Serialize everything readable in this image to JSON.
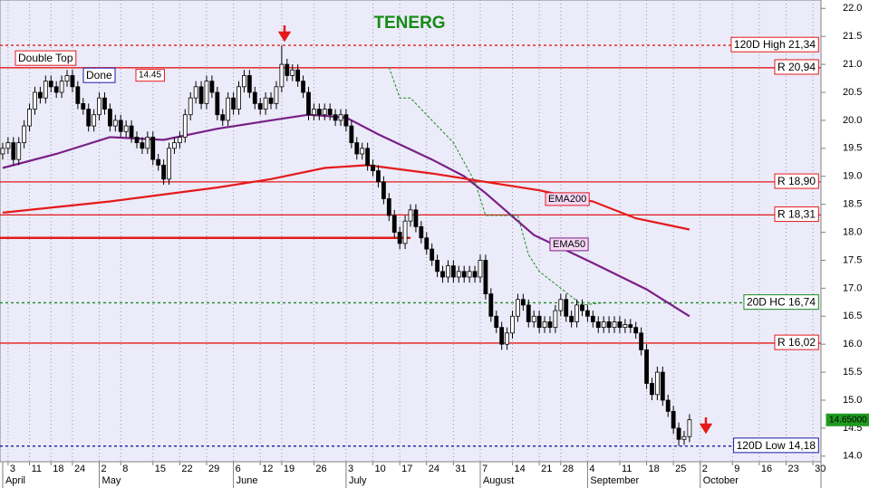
{
  "chart_data": {
    "type": "candlestick",
    "title": "TENERG",
    "xlim": [
      -0.5,
      152.5
    ],
    "ylim": [
      13.9,
      22.15
    ],
    "yticks": [
      {
        "value": 14,
        "label": "14.0"
      },
      14.5,
      {
        "value": 15,
        "label": "15.0"
      },
      15.5,
      {
        "value": 16,
        "label": "16.0"
      },
      16.5,
      {
        "value": 17,
        "label": "17.0"
      },
      17.5,
      {
        "value": 18,
        "label": "18.0"
      },
      18.5,
      {
        "value": 19,
        "label": "19.0"
      },
      19.5,
      {
        "value": 20,
        "label": "20.0"
      },
      20.5,
      {
        "value": 21,
        "label": "21.0"
      },
      21.5,
      {
        "value": 22,
        "label": "22.0"
      }
    ],
    "xticks": [
      {
        "value": 1,
        "label": "3"
      },
      {
        "value": 5,
        "label": "11"
      },
      {
        "value": 9,
        "label": "18"
      },
      {
        "value": 13,
        "label": "24"
      },
      {
        "value": 18,
        "label": "2"
      },
      {
        "value": 22,
        "label": "8"
      },
      {
        "value": 28,
        "label": "15"
      },
      {
        "value": 33,
        "label": "22"
      },
      {
        "value": 38,
        "label": "29"
      },
      {
        "value": 43,
        "label": "6"
      },
      {
        "value": 48,
        "label": "12"
      },
      {
        "value": 52,
        "label": "19"
      },
      {
        "value": 58,
        "label": "26"
      },
      {
        "value": 64,
        "label": "3"
      },
      {
        "value": 69,
        "label": "10"
      },
      {
        "value": 74,
        "label": "17"
      },
      {
        "value": 79,
        "label": "24"
      },
      {
        "value": 84,
        "label": "31"
      },
      {
        "value": 89,
        "label": "7"
      },
      {
        "value": 95,
        "label": "14"
      },
      {
        "value": 100,
        "label": "21"
      },
      {
        "value": 104,
        "label": "28"
      },
      {
        "value": 109,
        "label": "4"
      },
      {
        "value": 115,
        "label": "11"
      },
      {
        "value": 120,
        "label": "18"
      },
      {
        "value": 125,
        "label": "25"
      },
      {
        "value": 130,
        "label": "2"
      },
      {
        "value": 136,
        "label": "9"
      },
      {
        "value": 141,
        "label": "16"
      },
      {
        "value": 146,
        "label": "23"
      },
      {
        "value": 151,
        "label": "30"
      }
    ],
    "months": [
      {
        "value": 0,
        "label": "April"
      },
      {
        "value": 18,
        "label": "May"
      },
      {
        "value": 43,
        "label": "June"
      },
      {
        "value": 64,
        "label": "July"
      },
      {
        "value": 89,
        "label": "August"
      },
      {
        "value": 109,
        "label": "September"
      },
      {
        "value": 130,
        "label": "October"
      }
    ],
    "up_color": "#ffffff",
    "down_color": "#000000",
    "open": [
      19.4,
      19.5,
      19.6,
      19.3,
      19.6,
      19.9,
      20.2,
      20.5,
      20.4,
      20.7,
      20.6,
      20.5,
      20.7,
      20.8,
      20.6,
      20.3,
      20.2,
      19.9,
      20.1,
      20.4,
      20.2,
      19.9,
      20.0,
      19.8,
      19.9,
      19.7,
      19.6,
      19.5,
      19.7,
      19.3,
      19.2,
      18.95,
      19.5,
      19.6,
      19.7,
      20.1,
      20.4,
      20.6,
      20.3,
      20.7,
      20.5,
      20.1,
      20.0,
      20.4,
      20.2,
      20.6,
      20.8,
      20.5,
      20.3,
      20.2,
      20.4,
      20.3,
      20.6,
      21.0,
      20.8,
      20.9,
      20.7,
      20.5,
      20.1,
      20.2,
      20.1,
      20.2,
      20.1,
      20.0,
      20.1,
      19.9,
      19.6,
      19.4,
      19.5,
      19.2,
      19.1,
      18.9,
      18.6,
      18.3,
      18.0,
      17.8,
      18.2,
      18.4,
      18.1,
      17.9,
      17.7,
      17.5,
      17.3,
      17.2,
      17.4,
      17.2,
      17.3,
      17.2,
      17.3,
      17.2,
      17.5,
      16.9,
      16.5,
      16.3,
      16.0,
      16.2,
      16.5,
      16.8,
      16.7,
      16.4,
      16.5,
      16.3,
      16.4,
      16.3,
      16.6,
      16.8,
      16.5,
      16.4,
      16.7,
      16.6,
      16.5,
      16.4,
      16.3,
      16.4,
      16.3,
      16.4,
      16.3,
      16.35,
      16.3,
      16.2,
      15.9,
      15.3,
      15.1,
      15.5,
      15.0,
      14.8,
      14.5,
      14.3,
      14.35
    ],
    "high": [
      19.6,
      19.7,
      19.7,
      19.7,
      20.0,
      20.3,
      20.6,
      20.6,
      20.8,
      20.8,
      20.7,
      20.8,
      20.9,
      20.9,
      20.7,
      20.4,
      20.3,
      20.2,
      20.5,
      20.5,
      20.3,
      20.1,
      20.1,
      20.0,
      20.0,
      19.8,
      19.7,
      19.8,
      19.8,
      19.4,
      19.3,
      19.6,
      19.7,
      19.8,
      20.2,
      20.5,
      20.7,
      20.7,
      20.8,
      20.8,
      20.6,
      20.2,
      20.5,
      20.5,
      20.7,
      20.9,
      20.9,
      20.6,
      20.4,
      20.5,
      20.5,
      20.7,
      21.34,
      21.1,
      21.0,
      21.0,
      20.8,
      20.6,
      20.3,
      20.3,
      20.3,
      20.3,
      20.2,
      20.2,
      20.2,
      20.0,
      19.7,
      19.6,
      19.6,
      19.3,
      19.2,
      19.0,
      18.7,
      18.4,
      18.1,
      18.3,
      18.5,
      18.5,
      18.2,
      18.0,
      17.8,
      17.6,
      17.4,
      17.5,
      17.5,
      17.4,
      17.4,
      17.4,
      17.4,
      17.6,
      17.6,
      17.0,
      16.6,
      16.4,
      16.3,
      16.6,
      16.9,
      16.9,
      16.8,
      16.6,
      16.6,
      16.5,
      16.5,
      16.7,
      16.9,
      16.9,
      16.6,
      16.8,
      16.8,
      16.7,
      16.6,
      16.5,
      16.5,
      16.5,
      16.5,
      16.5,
      16.45,
      16.45,
      16.4,
      16.3,
      16.0,
      15.4,
      15.6,
      15.6,
      15.1,
      14.9,
      14.6,
      14.45,
      14.75
    ],
    "low": [
      19.3,
      19.4,
      19.2,
      19.2,
      19.5,
      19.8,
      20.1,
      20.3,
      20.3,
      20.5,
      20.4,
      20.4,
      20.6,
      20.5,
      20.2,
      20.1,
      19.8,
      19.8,
      20.0,
      20.1,
      19.8,
      19.8,
      19.7,
      19.7,
      19.6,
      19.5,
      19.4,
      19.4,
      19.2,
      19.1,
      18.85,
      18.85,
      19.4,
      19.5,
      19.6,
      20.0,
      20.3,
      20.2,
      20.2,
      20.4,
      20.0,
      19.9,
      19.9,
      20.1,
      20.1,
      20.5,
      20.4,
      20.2,
      20.1,
      20.1,
      20.2,
      20.2,
      20.5,
      20.7,
      20.7,
      20.6,
      20.4,
      20.0,
      20.0,
      20.0,
      20.0,
      20.0,
      19.9,
      19.9,
      19.8,
      19.5,
      19.3,
      19.3,
      19.1,
      19.0,
      18.8,
      18.5,
      18.2,
      17.9,
      17.7,
      17.7,
      18.1,
      18.0,
      17.8,
      17.6,
      17.4,
      17.2,
      17.1,
      17.1,
      17.1,
      17.1,
      17.1,
      17.1,
      17.1,
      17.1,
      16.8,
      16.4,
      16.2,
      15.9,
      15.9,
      16.1,
      16.4,
      16.6,
      16.3,
      16.3,
      16.2,
      16.2,
      16.2,
      16.2,
      16.5,
      16.4,
      16.3,
      16.3,
      16.5,
      16.4,
      16.3,
      16.2,
      16.2,
      16.2,
      16.2,
      16.2,
      16.2,
      16.2,
      16.1,
      15.8,
      15.2,
      15.0,
      15.0,
      14.9,
      14.7,
      14.4,
      14.18,
      14.2,
      14.25
    ],
    "close": [
      19.5,
      19.6,
      19.3,
      19.6,
      19.9,
      20.2,
      20.5,
      20.4,
      20.7,
      20.6,
      20.5,
      20.7,
      20.8,
      20.6,
      20.3,
      20.2,
      19.9,
      20.1,
      20.4,
      20.2,
      19.9,
      20.0,
      19.8,
      19.9,
      19.7,
      19.6,
      19.5,
      19.7,
      19.3,
      19.2,
      18.95,
      19.5,
      19.6,
      19.7,
      20.1,
      20.4,
      20.6,
      20.3,
      20.7,
      20.5,
      20.1,
      20.0,
      20.4,
      20.2,
      20.6,
      20.8,
      20.5,
      20.3,
      20.2,
      20.4,
      20.3,
      20.6,
      21.0,
      20.8,
      20.9,
      20.7,
      20.5,
      20.1,
      20.2,
      20.1,
      20.2,
      20.1,
      20.0,
      20.1,
      19.9,
      19.6,
      19.4,
      19.5,
      19.2,
      19.1,
      18.9,
      18.6,
      18.3,
      18.0,
      17.8,
      18.2,
      18.4,
      18.1,
      17.9,
      17.7,
      17.5,
      17.3,
      17.2,
      17.4,
      17.2,
      17.3,
      17.2,
      17.3,
      17.2,
      17.5,
      16.9,
      16.5,
      16.3,
      16.0,
      16.2,
      16.5,
      16.8,
      16.7,
      16.4,
      16.5,
      16.3,
      16.4,
      16.3,
      16.6,
      16.8,
      16.5,
      16.4,
      16.7,
      16.6,
      16.5,
      16.4,
      16.3,
      16.4,
      16.3,
      16.4,
      16.3,
      16.35,
      16.3,
      16.2,
      15.9,
      15.3,
      15.1,
      15.5,
      15.0,
      14.8,
      14.5,
      14.3,
      14.35,
      14.65
    ],
    "lines": [
      {
        "name": "EMA50",
        "color": "#7a1f86",
        "x": [
          0,
          10,
          20,
          30,
          40,
          50,
          57,
          64,
          70,
          80,
          86,
          90,
          99,
          110,
          120,
          128
        ],
        "values": [
          19.15,
          19.4,
          19.7,
          19.65,
          19.85,
          20.0,
          20.1,
          20.05,
          19.75,
          19.3,
          19.0,
          18.7,
          17.95,
          17.45,
          16.98,
          16.5
        ]
      },
      {
        "name": "EMA200",
        "color": "#e41a1a",
        "x": [
          0,
          20,
          40,
          50,
          60,
          68,
          80,
          90,
          100,
          110,
          118,
          128
        ],
        "values": [
          18.35,
          18.55,
          18.8,
          18.95,
          19.15,
          19.2,
          19.05,
          18.9,
          18.75,
          18.55,
          18.25,
          18.05
        ]
      },
      {
        "color": "#1e8c1e",
        "dashed": true,
        "x": [
          72,
          74,
          76,
          80,
          84,
          88,
          90,
          96,
          98,
          100,
          108,
          112
        ],
        "values": [
          20.95,
          20.4,
          20.4,
          20.0,
          19.6,
          18.9,
          18.3,
          18.3,
          17.6,
          17.3,
          16.7,
          16.74
        ]
      }
    ],
    "levels": [
      {
        "value": 21.34,
        "label": "120D High 21,34",
        "color": "#e41a1a",
        "dashed": true
      },
      {
        "value": 20.94,
        "label": "R 20,94",
        "color": "#e41a1a"
      },
      {
        "value": 18.9,
        "label": "R 18,90",
        "color": "#e41a1a"
      },
      {
        "value": 18.31,
        "label": "R 18,31",
        "color": "#e41a1a"
      },
      {
        "value": 16.74,
        "label": "20D HC 16,74",
        "color": "#1e8c1e",
        "dashed": true
      },
      {
        "value": 16.02,
        "label": "R 16,02",
        "color": "#e41a1a"
      },
      {
        "value": 14.18,
        "label": "120D Low 14,18",
        "color": "#1a1aa8",
        "dashed": true
      }
    ],
    "segments": [
      {
        "value": 17.9,
        "x": [
          -0.5,
          76
        ],
        "color": "#e41a1a"
      }
    ],
    "last_price": {
      "value": 14.65,
      "label": "14.65000",
      "color": "#1e9a1e"
    },
    "annotations": [
      {
        "text": "Double Top",
        "color": "#e41a1a"
      },
      {
        "text": "Done",
        "color": "#1a1aa8"
      },
      {
        "text": "14.45",
        "color": "#e41a1a"
      }
    ]
  }
}
